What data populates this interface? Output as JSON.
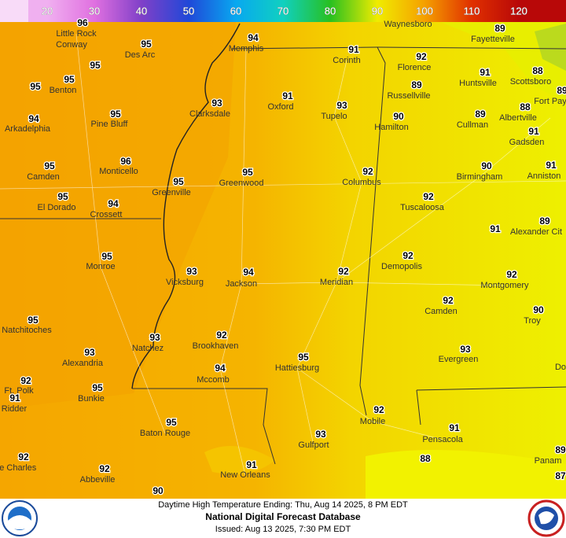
{
  "legend": {
    "ticks": [
      20,
      30,
      40,
      50,
      60,
      70,
      80,
      90,
      100,
      110,
      120
    ],
    "range": [
      10,
      130
    ],
    "colors": [
      "#f0b0f0",
      "#e070e0",
      "#8040c8",
      "#2048d8",
      "#08a8f0",
      "#10d0c0",
      "#28c020",
      "#f0ec00",
      "#f5a000",
      "#e03000",
      "#b80808"
    ]
  },
  "temperatures": [
    96,
    94,
    95,
    95,
    95,
    95,
    93,
    91,
    93,
    95,
    94,
    96,
    95,
    95,
    95,
    95,
    94,
    92,
    95,
    93,
    94,
    92,
    95,
    93,
    93,
    92,
    95,
    94,
    92,
    91,
    95,
    95,
    93,
    91,
    92,
    92,
    90,
    89,
    91,
    92,
    91,
    88,
    89,
    88,
    90,
    89,
    91,
    90,
    91,
    92,
    89,
    91,
    92,
    92,
    92,
    90,
    93,
    92,
    91,
    88,
    89,
    87,
    89
  ],
  "cities": [
    "Waynesboro",
    "Fayetteville",
    "Little Rock",
    "Conway",
    "Des Arc",
    "Memphis",
    "Corinth",
    "Florence",
    "Huntsville",
    "Scottsboro",
    "Fort Pay",
    "Benton",
    "Russellville",
    "Albertville",
    "Arkadelphia",
    "Pine Bluff",
    "Clarksdale",
    "Oxford",
    "Tupelo",
    "Hamilton",
    "Cullman",
    "Gadsden",
    "Monticello",
    "Camden",
    "Greenville",
    "Greenwood",
    "Columbus",
    "Birmingham",
    "Anniston",
    "El Dorado",
    "Crossett",
    "Tuscaloosa",
    "Alexander Cit",
    "Monroe",
    "Vicksburg",
    "Jackson",
    "Meridian",
    "Demopolis",
    "Montgomery",
    "Natchitoches",
    "Camden",
    "Troy",
    "Natchez",
    "Brookhaven",
    "Alexandria",
    "Evergreen",
    "Hattiesburg",
    "Do",
    "Mccomb",
    "Ft. Polk",
    "Ridder",
    "Bunkie",
    "Mobile",
    "Baton Rouge",
    "Gulfport",
    "Pensacola",
    "Panam",
    "ke Charles",
    "Abbeville",
    "New Orleans"
  ],
  "footer": {
    "line1": "Daytime High Temperature Ending: Thu, Aug 14 2025, 8 PM EDT",
    "line2": "National Digital Forecast Database",
    "line3": "Issued: Aug 13 2025, 7:30 PM EDT"
  }
}
